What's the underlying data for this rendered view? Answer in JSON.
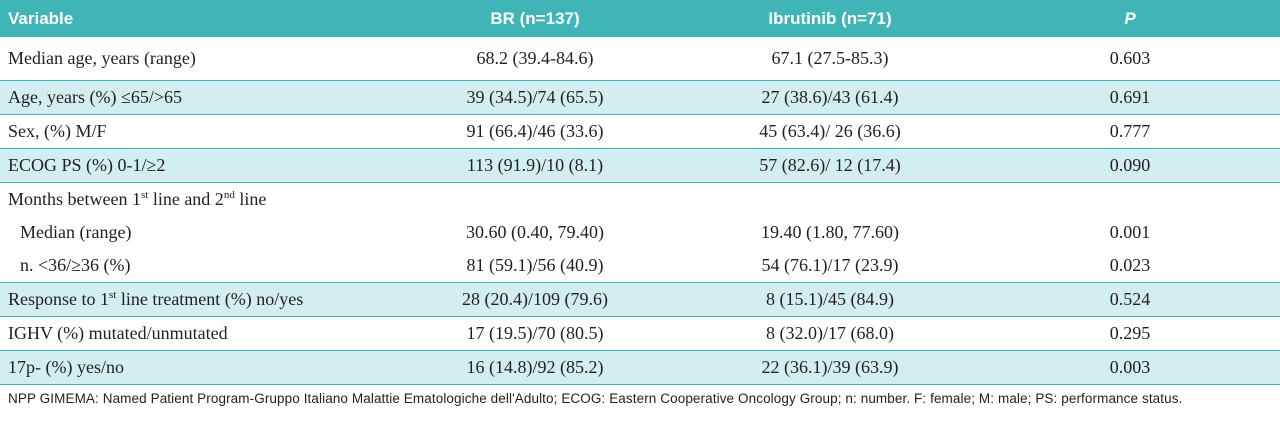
{
  "table": {
    "header": [
      "Variable",
      "BR (n=137)",
      "Ibrutinib (n=71)",
      "P"
    ],
    "rows": [
      [
        "Median age, years (range)",
        "68.2 (39.4-84.6)",
        "67.1 (27.5-85.3)",
        "0.603"
      ],
      [
        "Age, years (%) ≤65/>65",
        "39 (34.5)/74 (65.5)",
        "27 (38.6)/43 (61.4)",
        "0.691"
      ],
      [
        "Sex, (%) M/F",
        "91 (66.4)/46 (33.6)",
        "45 (63.4)/ 26 (36.6)",
        "0.777"
      ],
      [
        "ECOG PS (%) 0-1/≥2",
        "113 (91.9)/10 (8.1)",
        "57 (82.6)/ 12 (17.4)",
        "0.090"
      ],
      [
        [
          "Months between 1",
          "st",
          " line and 2",
          "nd",
          " line"
        ]
      ],
      [
        "Median (range)",
        "30.60 (0.40, 79.40)",
        "19.40 (1.80, 77.60)",
        "0.001"
      ],
      [
        "n. <36/≥36 (%)",
        "81 (59.1)/56 (40.9)",
        "54 (76.1)/17 (23.9)",
        "0.023"
      ],
      [
        [
          "Response to 1",
          "st",
          " line treatment (%) no/yes"
        ],
        "28 (20.4)/109 (79.6)",
        "8 (15.1)/45 (84.9)",
        "0.524"
      ],
      [
        "IGHV (%) mutated/unmutated",
        "17 (19.5)/70 (80.5)",
        "8 (32.0)/17 (68.0)",
        "0.295"
      ],
      [
        "17p- (%) yes/no",
        "16 (14.8)/92 (85.2)",
        "22 (36.1)/39 (63.9)",
        "0.003"
      ]
    ],
    "footnote": "NPP GIMEMA: Named Patient Program-Gruppo Italiano Malattie Ematologiche dell'Adulto; ECOG: Eastern Cooperative Oncology Group; n: number. F: female; M: male; PS: performance status."
  }
}
